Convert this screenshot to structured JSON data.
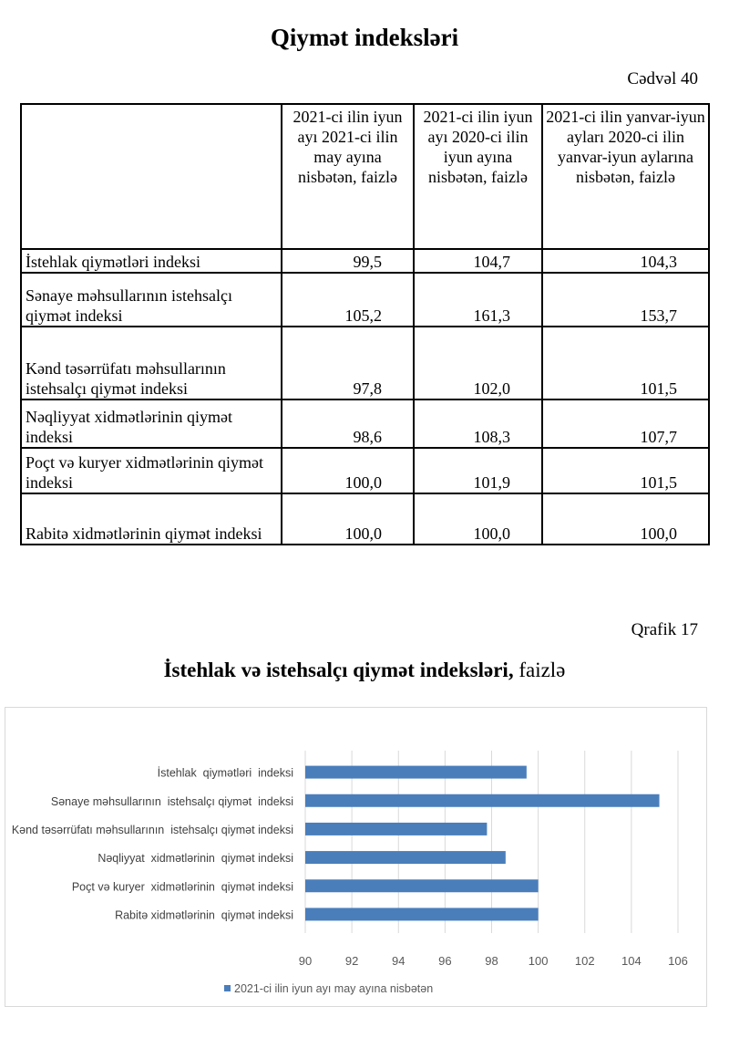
{
  "page_title": "Qiymət indeksləri",
  "table_label": "Cədvəl 40",
  "table": {
    "headers": [
      "",
      "2021-ci ilin iyun ayı 2021-ci ilin may ayına nisbətən, faizlə",
      "2021-ci ilin iyun ayı 2020-ci ilin iyun ayına nisbətən, faizlə",
      "2021-ci ilin yanvar-iyun ayları 2020-ci ilin yanvar-iyun aylarına nisbətən, faizlə"
    ],
    "rows": [
      {
        "label": "İstehlak qiymətləri indeksi",
        "v1": "99,5",
        "v2": "104,7",
        "v3": "104,3"
      },
      {
        "label": "Sənaye məhsullarının istehsalçı qiymət indeksi",
        "v1": "105,2",
        "v2": "161,3",
        "v3": "153,7"
      },
      {
        "label": "Kənd təsərrüfatı məhsullarının istehsalçı qiymət indeksi",
        "v1": "97,8",
        "v2": "102,0",
        "v3": "101,5"
      },
      {
        "label": "Nəqliyyat xidmətlərinin qiymət indeksi",
        "v1": "98,6",
        "v2": "108,3",
        "v3": "107,7"
      },
      {
        "label": "Poçt və kuryer xidmətlərinin qiymət indeksi",
        "v1": "100,0",
        "v2": "101,9",
        "v3": "101,5"
      },
      {
        "label": "Rabitə xidmətlərinin qiymət indeksi",
        "v1": "100,0",
        "v2": "100,0",
        "v3": "100,0"
      }
    ]
  },
  "chart_label": "Qrafik 17",
  "chart_title_bold": "İstehlak və istehsalçı qiymət indeksləri,",
  "chart_title_rest": "faizlə",
  "chart_data": {
    "type": "bar",
    "orientation": "horizontal",
    "categories": [
      "İstehlak  qiymətləri  indeksi",
      "Sənaye məhsullarının  istehsalçı qiymət  indeksi",
      "Kənd təsərrüfatı məhsullarının  istehsalçı qiymət indeksi",
      "Nəqliyyat  xidmətlərinin  qiymət indeksi",
      "Poçt və kuryer  xidmətlərinin  qiymət indeksi",
      "Rabitə xidmətlərinin  qiymət indeksi"
    ],
    "series": [
      {
        "name": "2021-ci ilin iyun ayı may ayına nisbətən",
        "values": [
          99.5,
          105.2,
          97.8,
          98.6,
          100.0,
          100.0
        ],
        "color": "#4a7ebb"
      }
    ],
    "xlim": [
      90,
      106
    ],
    "ticks": [
      "90",
      "92",
      "94",
      "96",
      "98",
      "100",
      "102",
      "104",
      "106"
    ],
    "grid": true,
    "legend": "bottom",
    "title": "",
    "xlabel": "",
    "ylabel": ""
  }
}
